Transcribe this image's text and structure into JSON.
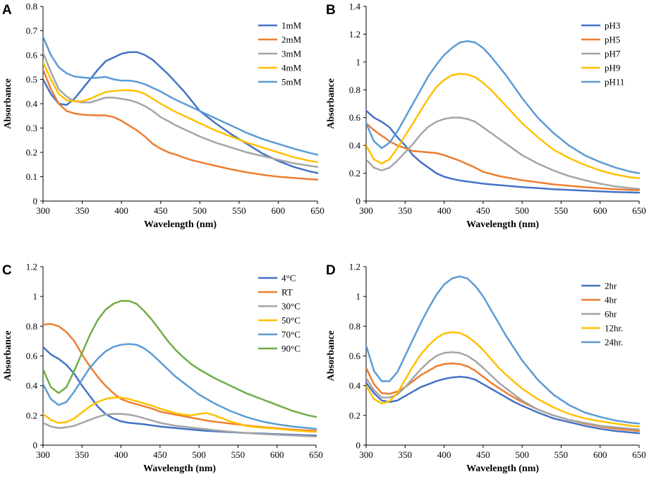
{
  "chart_data": [
    {
      "panel_letter": "A",
      "type": "line",
      "xlabel": "Wavelength (nm)",
      "ylabel": "Absorbance",
      "xlim": [
        300,
        650
      ],
      "ylim": [
        0,
        0.8
      ],
      "xticks": [
        300,
        350,
        400,
        450,
        500,
        550,
        600,
        650
      ],
      "yticks": [
        0,
        0.1,
        0.2,
        0.3,
        0.4,
        0.5,
        0.6,
        0.7,
        0.8
      ],
      "x": [
        300,
        310,
        320,
        330,
        340,
        350,
        360,
        370,
        380,
        390,
        400,
        410,
        420,
        430,
        440,
        450,
        460,
        470,
        480,
        490,
        500,
        520,
        540,
        560,
        580,
        600,
        620,
        640,
        650
      ],
      "legend_position": "top-right",
      "series": [
        {
          "name": "1mM",
          "color": "#4472C4",
          "values": [
            0.5,
            0.44,
            0.4,
            0.395,
            0.42,
            0.46,
            0.5,
            0.54,
            0.575,
            0.59,
            0.605,
            0.612,
            0.612,
            0.6,
            0.58,
            0.55,
            0.52,
            0.485,
            0.45,
            0.41,
            0.37,
            0.32,
            0.275,
            0.235,
            0.195,
            0.165,
            0.14,
            0.122,
            0.115
          ]
        },
        {
          "name": "2mM",
          "color": "#ED7D31",
          "values": [
            0.54,
            0.46,
            0.4,
            0.37,
            0.36,
            0.355,
            0.353,
            0.352,
            0.352,
            0.345,
            0.33,
            0.31,
            0.29,
            0.265,
            0.235,
            0.215,
            0.2,
            0.19,
            0.178,
            0.168,
            0.16,
            0.145,
            0.13,
            0.118,
            0.108,
            0.1,
            0.095,
            0.09,
            0.088
          ]
        },
        {
          "name": "3mM",
          "color": "#A5A5A5",
          "values": [
            0.61,
            0.53,
            0.46,
            0.43,
            0.41,
            0.405,
            0.405,
            0.415,
            0.425,
            0.425,
            0.42,
            0.415,
            0.405,
            0.39,
            0.37,
            0.345,
            0.328,
            0.31,
            0.295,
            0.28,
            0.265,
            0.24,
            0.22,
            0.2,
            0.185,
            0.17,
            0.155,
            0.145,
            0.14
          ]
        },
        {
          "name": "4mM",
          "color": "#FFC000",
          "values": [
            0.57,
            0.5,
            0.44,
            0.415,
            0.41,
            0.41,
            0.42,
            0.435,
            0.448,
            0.452,
            0.455,
            0.455,
            0.452,
            0.44,
            0.42,
            0.4,
            0.382,
            0.365,
            0.35,
            0.335,
            0.32,
            0.29,
            0.265,
            0.24,
            0.22,
            0.2,
            0.18,
            0.165,
            0.16
          ]
        },
        {
          "name": "5mM",
          "color": "#5B9BD5",
          "values": [
            0.675,
            0.6,
            0.55,
            0.525,
            0.512,
            0.508,
            0.505,
            0.507,
            0.51,
            0.5,
            0.495,
            0.495,
            0.49,
            0.48,
            0.465,
            0.45,
            0.432,
            0.415,
            0.4,
            0.385,
            0.37,
            0.34,
            0.31,
            0.28,
            0.255,
            0.235,
            0.215,
            0.198,
            0.19
          ]
        }
      ]
    },
    {
      "panel_letter": "B",
      "type": "line",
      "xlabel": "Wavelength (nm)",
      "ylabel": "Absorbance",
      "xlim": [
        300,
        650
      ],
      "ylim": [
        0,
        1.4
      ],
      "xticks": [
        300,
        350,
        400,
        450,
        500,
        550,
        600,
        650
      ],
      "yticks": [
        0,
        0.2,
        0.4,
        0.6,
        0.8,
        1,
        1.2,
        1.4
      ],
      "x": [
        300,
        310,
        320,
        330,
        340,
        350,
        360,
        370,
        380,
        390,
        400,
        410,
        420,
        430,
        440,
        450,
        460,
        470,
        480,
        490,
        500,
        520,
        540,
        560,
        580,
        600,
        620,
        640,
        650
      ],
      "legend_position": "top-right",
      "series": [
        {
          "name": "pH3",
          "color": "#4472C4",
          "values": [
            0.65,
            0.6,
            0.57,
            0.53,
            0.46,
            0.4,
            0.33,
            0.28,
            0.24,
            0.2,
            0.175,
            0.16,
            0.148,
            0.14,
            0.133,
            0.125,
            0.12,
            0.115,
            0.11,
            0.105,
            0.1,
            0.093,
            0.085,
            0.08,
            0.075,
            0.07,
            0.065,
            0.062,
            0.06
          ]
        },
        {
          "name": "pH5",
          "color": "#ED7D31",
          "values": [
            0.56,
            0.51,
            0.47,
            0.43,
            0.4,
            0.38,
            0.36,
            0.355,
            0.35,
            0.345,
            0.33,
            0.31,
            0.29,
            0.265,
            0.24,
            0.21,
            0.195,
            0.18,
            0.17,
            0.16,
            0.15,
            0.135,
            0.12,
            0.11,
            0.1,
            0.092,
            0.085,
            0.08,
            0.078
          ]
        },
        {
          "name": "pH7",
          "color": "#A5A5A5",
          "values": [
            0.3,
            0.24,
            0.22,
            0.24,
            0.29,
            0.35,
            0.41,
            0.48,
            0.535,
            0.57,
            0.59,
            0.6,
            0.6,
            0.59,
            0.57,
            0.53,
            0.49,
            0.45,
            0.41,
            0.37,
            0.33,
            0.27,
            0.22,
            0.18,
            0.15,
            0.125,
            0.105,
            0.092,
            0.088
          ]
        },
        {
          "name": "pH9",
          "color": "#FFC000",
          "values": [
            0.4,
            0.3,
            0.27,
            0.3,
            0.38,
            0.47,
            0.56,
            0.65,
            0.74,
            0.82,
            0.87,
            0.905,
            0.915,
            0.91,
            0.89,
            0.85,
            0.8,
            0.74,
            0.68,
            0.62,
            0.56,
            0.46,
            0.37,
            0.31,
            0.26,
            0.22,
            0.19,
            0.17,
            0.165
          ]
        },
        {
          "name": "pH11",
          "color": "#5B9BD5",
          "values": [
            0.56,
            0.43,
            0.38,
            0.42,
            0.5,
            0.6,
            0.7,
            0.8,
            0.9,
            0.98,
            1.05,
            1.1,
            1.14,
            1.15,
            1.14,
            1.1,
            1.04,
            0.97,
            0.9,
            0.82,
            0.74,
            0.6,
            0.49,
            0.4,
            0.33,
            0.28,
            0.24,
            0.21,
            0.2
          ]
        }
      ]
    },
    {
      "panel_letter": "C",
      "type": "line",
      "xlabel": "Wavelength (nm)",
      "ylabel": "Absorbance",
      "xlim": [
        300,
        650
      ],
      "ylim": [
        0,
        1.2
      ],
      "xticks": [
        300,
        350,
        400,
        450,
        500,
        550,
        600,
        650
      ],
      "yticks": [
        0,
        0.2,
        0.4,
        0.6,
        0.8,
        1,
        1.2
      ],
      "x": [
        300,
        310,
        320,
        330,
        340,
        350,
        360,
        370,
        380,
        390,
        400,
        410,
        420,
        430,
        440,
        450,
        460,
        470,
        480,
        490,
        500,
        510,
        520,
        540,
        560,
        580,
        600,
        620,
        640,
        650
      ],
      "legend_position": "top-right",
      "series": [
        {
          "name": "4°C",
          "color": "#4472C4",
          "values": [
            0.66,
            0.61,
            0.58,
            0.54,
            0.48,
            0.4,
            0.33,
            0.26,
            0.21,
            0.18,
            0.16,
            0.15,
            0.145,
            0.14,
            0.132,
            0.125,
            0.12,
            0.115,
            0.11,
            0.105,
            0.1,
            0.096,
            0.093,
            0.087,
            0.082,
            0.078,
            0.074,
            0.07,
            0.066,
            0.065
          ]
        },
        {
          "name": "RT",
          "color": "#ED7D31",
          "values": [
            0.81,
            0.815,
            0.8,
            0.76,
            0.7,
            0.61,
            0.53,
            0.46,
            0.4,
            0.35,
            0.31,
            0.29,
            0.275,
            0.26,
            0.245,
            0.225,
            0.215,
            0.205,
            0.195,
            0.185,
            0.175,
            0.165,
            0.158,
            0.145,
            0.133,
            0.122,
            0.113,
            0.105,
            0.099,
            0.097
          ]
        },
        {
          "name": "30°C",
          "color": "#A5A5A5",
          "values": [
            0.15,
            0.125,
            0.115,
            0.12,
            0.13,
            0.15,
            0.17,
            0.19,
            0.205,
            0.21,
            0.21,
            0.205,
            0.195,
            0.18,
            0.165,
            0.15,
            0.14,
            0.13,
            0.125,
            0.118,
            0.112,
            0.106,
            0.1,
            0.09,
            0.082,
            0.075,
            0.07,
            0.065,
            0.06,
            0.058
          ]
        },
        {
          "name": "50°C",
          "color": "#FFC000",
          "values": [
            0.21,
            0.17,
            0.15,
            0.155,
            0.18,
            0.22,
            0.26,
            0.29,
            0.31,
            0.32,
            0.32,
            0.31,
            0.295,
            0.28,
            0.265,
            0.245,
            0.23,
            0.215,
            0.205,
            0.2,
            0.21,
            0.215,
            0.2,
            0.16,
            0.13,
            0.118,
            0.11,
            0.1,
            0.092,
            0.09
          ]
        },
        {
          "name": "70°C",
          "color": "#5B9BD5",
          "values": [
            0.41,
            0.31,
            0.27,
            0.29,
            0.36,
            0.44,
            0.52,
            0.58,
            0.63,
            0.66,
            0.675,
            0.68,
            0.675,
            0.65,
            0.61,
            0.56,
            0.51,
            0.46,
            0.42,
            0.38,
            0.34,
            0.31,
            0.28,
            0.23,
            0.19,
            0.16,
            0.14,
            0.125,
            0.115,
            0.11
          ]
        },
        {
          "name": "90°C",
          "color": "#70AD47",
          "values": [
            0.51,
            0.39,
            0.35,
            0.39,
            0.5,
            0.62,
            0.74,
            0.84,
            0.91,
            0.95,
            0.97,
            0.97,
            0.95,
            0.9,
            0.84,
            0.77,
            0.7,
            0.64,
            0.59,
            0.545,
            0.51,
            0.48,
            0.45,
            0.4,
            0.35,
            0.31,
            0.27,
            0.23,
            0.2,
            0.19
          ]
        }
      ]
    },
    {
      "panel_letter": "D",
      "type": "line",
      "xlabel": "Wavelength (nm)",
      "ylabel": "Absorbance",
      "xlim": [
        300,
        650
      ],
      "ylim": [
        0,
        1.2
      ],
      "xticks": [
        300,
        350,
        400,
        450,
        500,
        550,
        600,
        650
      ],
      "yticks": [
        0,
        0.2,
        0.4,
        0.6,
        0.8,
        1,
        1.2
      ],
      "x": [
        300,
        310,
        320,
        330,
        340,
        350,
        360,
        370,
        380,
        390,
        400,
        410,
        420,
        430,
        440,
        450,
        460,
        470,
        480,
        490,
        500,
        520,
        540,
        560,
        580,
        600,
        620,
        640,
        650
      ],
      "legend_position": "top-right",
      "series": [
        {
          "name": "2hr",
          "color": "#4472C4",
          "values": [
            0.42,
            0.35,
            0.3,
            0.29,
            0.3,
            0.33,
            0.36,
            0.39,
            0.41,
            0.43,
            0.445,
            0.455,
            0.46,
            0.455,
            0.44,
            0.41,
            0.38,
            0.35,
            0.32,
            0.29,
            0.265,
            0.22,
            0.18,
            0.155,
            0.13,
            0.11,
            0.095,
            0.085,
            0.08
          ]
        },
        {
          "name": "4hr",
          "color": "#ED7D31",
          "values": [
            0.52,
            0.41,
            0.35,
            0.345,
            0.36,
            0.39,
            0.43,
            0.47,
            0.5,
            0.53,
            0.545,
            0.55,
            0.545,
            0.53,
            0.5,
            0.46,
            0.42,
            0.385,
            0.35,
            0.32,
            0.29,
            0.24,
            0.2,
            0.17,
            0.145,
            0.125,
            0.11,
            0.1,
            0.095
          ]
        },
        {
          "name": "6hr",
          "color": "#A5A5A5",
          "values": [
            0.45,
            0.37,
            0.32,
            0.32,
            0.34,
            0.39,
            0.45,
            0.51,
            0.56,
            0.6,
            0.62,
            0.625,
            0.62,
            0.6,
            0.565,
            0.52,
            0.47,
            0.42,
            0.38,
            0.34,
            0.3,
            0.24,
            0.2,
            0.17,
            0.15,
            0.13,
            0.12,
            0.11,
            0.105
          ]
        },
        {
          "name": "12hr.",
          "color": "#FFC000",
          "values": [
            0.4,
            0.31,
            0.28,
            0.295,
            0.35,
            0.44,
            0.53,
            0.61,
            0.67,
            0.72,
            0.75,
            0.76,
            0.755,
            0.73,
            0.69,
            0.64,
            0.58,
            0.52,
            0.47,
            0.425,
            0.38,
            0.31,
            0.255,
            0.21,
            0.18,
            0.16,
            0.145,
            0.13,
            0.125
          ]
        },
        {
          "name": "24hr.",
          "color": "#5B9BD5",
          "values": [
            0.67,
            0.5,
            0.43,
            0.43,
            0.49,
            0.6,
            0.71,
            0.82,
            0.92,
            1.01,
            1.08,
            1.12,
            1.135,
            1.12,
            1.07,
            1.0,
            0.91,
            0.82,
            0.73,
            0.65,
            0.57,
            0.44,
            0.34,
            0.27,
            0.22,
            0.19,
            0.165,
            0.15,
            0.145
          ]
        }
      ]
    }
  ]
}
